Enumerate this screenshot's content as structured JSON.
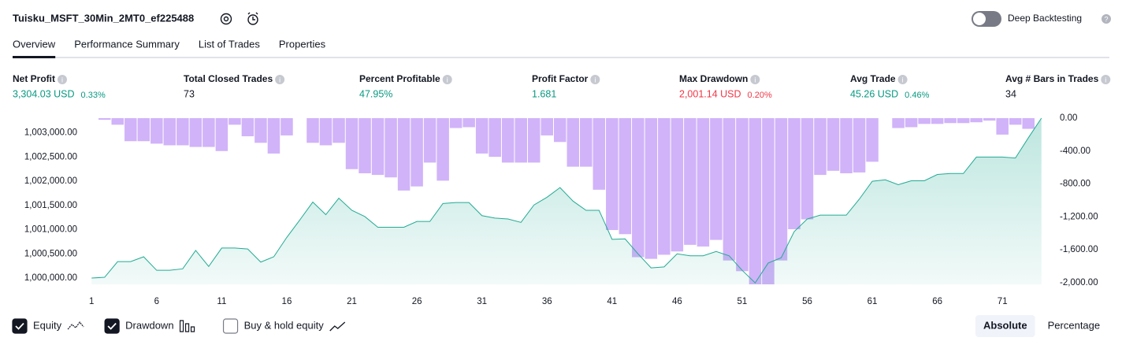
{
  "header": {
    "title": "Tuisku_MSFT_30Min_2MT0_ef225488",
    "deep_backtesting": "Deep Backtesting",
    "deep_backtesting_on": false
  },
  "tabs": [
    "Overview",
    "Performance Summary",
    "List of Trades",
    "Properties"
  ],
  "active_tab": 0,
  "metrics": [
    {
      "label": "Net Profit",
      "value": "3,304.03 USD",
      "percent": "0.33%",
      "color": "#089981"
    },
    {
      "label": "Total Closed Trades",
      "value": "73",
      "color": "#131722"
    },
    {
      "label": "Percent Profitable",
      "value": "47.95%",
      "color": "#089981"
    },
    {
      "label": "Profit Factor",
      "value": "1.681",
      "color": "#089981"
    },
    {
      "label": "Max Drawdown",
      "value": "2,001.14 USD",
      "percent": "0.20%",
      "color": "#f23645"
    },
    {
      "label": "Avg Trade",
      "value": "45.26 USD",
      "percent": "0.46%",
      "color": "#089981"
    },
    {
      "label": "Avg # Bars in Trades",
      "value": "34",
      "color": "#131722"
    }
  ],
  "chart_data": {
    "type": "combo",
    "x": [
      1,
      2,
      3,
      4,
      5,
      6,
      7,
      8,
      9,
      10,
      11,
      12,
      13,
      14,
      15,
      16,
      17,
      18,
      19,
      20,
      21,
      22,
      23,
      24,
      25,
      26,
      27,
      28,
      29,
      30,
      31,
      32,
      33,
      34,
      35,
      36,
      37,
      38,
      39,
      40,
      41,
      42,
      43,
      44,
      45,
      46,
      47,
      48,
      49,
      50,
      51,
      52,
      53,
      54,
      55,
      56,
      57,
      58,
      59,
      60,
      61,
      62,
      63,
      64,
      65,
      66,
      67,
      68,
      69,
      70,
      71,
      72,
      73,
      74
    ],
    "xlim": [
      0.5,
      74.5
    ],
    "xticks": [
      1,
      6,
      11,
      16,
      21,
      26,
      31,
      36,
      41,
      46,
      51,
      56,
      61,
      66,
      71
    ],
    "ylim": [
      999870,
      1003304
    ],
    "yticks": [
      {
        "value": 1000000,
        "label": "1,000,000.00"
      },
      {
        "value": 1000500,
        "label": "1,000,500.00"
      },
      {
        "value": 1001000,
        "label": "1,001,000.00"
      },
      {
        "value": 1001500,
        "label": "1,001,500.00"
      },
      {
        "value": 1002000,
        "label": "1,002,000.00"
      },
      {
        "value": 1002500,
        "label": "1,002,500.00"
      },
      {
        "value": 1003000,
        "label": "1,003,000.00"
      }
    ],
    "y2lim": [
      -2020,
      0
    ],
    "y2ticks": [
      {
        "value": 0,
        "label": "0.00"
      },
      {
        "value": -400,
        "label": "-400.00"
      },
      {
        "value": -800,
        "label": "-800.00"
      },
      {
        "value": -1200,
        "label": "-1,200.00"
      },
      {
        "value": -1600,
        "label": "-1,600.00"
      },
      {
        "value": -2000,
        "label": "-2,000.00"
      }
    ],
    "series": [
      {
        "name": "Equity",
        "kind": "area",
        "checked": true,
        "color": "#22ab94",
        "values": [
          1000000,
          1000016,
          1000340,
          1000340,
          1000440,
          1000160,
          1000160,
          1000190,
          1000570,
          1000240,
          1000620,
          1000620,
          1000600,
          1000330,
          1000440,
          1000840,
          1001200,
          1001570,
          1001310,
          1001650,
          1001400,
          1001270,
          1001050,
          1001050,
          1001050,
          1001170,
          1001170,
          1001540,
          1001560,
          1001560,
          1001290,
          1001240,
          1001220,
          1001150,
          1001510,
          1001670,
          1001870,
          1001590,
          1001400,
          1001400,
          1000800,
          1000810,
          1000500,
          1000210,
          1000230,
          1000500,
          1000460,
          1000460,
          1000550,
          1000460,
          1000160,
          999900,
          1000310,
          1000420,
          1000960,
          1001220,
          1001300,
          1001300,
          1001300,
          1001630,
          1002000,
          1002030,
          1001930,
          1002010,
          1002010,
          1002140,
          1002160,
          1002160,
          1002500,
          1002500,
          1002500,
          1002480,
          1002900,
          1003304
        ]
      },
      {
        "name": "Drawdown",
        "kind": "bar",
        "axis": "y2",
        "checked": true,
        "color": "#d1b3f9",
        "values": [
          0,
          -20,
          -80,
          -280,
          -280,
          -310,
          -330,
          -330,
          -350,
          -350,
          -400,
          -80,
          -220,
          -300,
          -430,
          -210,
          0,
          -300,
          -330,
          -300,
          -620,
          -670,
          -690,
          -720,
          -880,
          -830,
          -540,
          -760,
          -120,
          -110,
          -430,
          -470,
          -540,
          -540,
          -540,
          -210,
          -290,
          -590,
          -590,
          -870,
          -1360,
          -1410,
          -1690,
          -1710,
          -1660,
          -1620,
          -1540,
          -1560,
          -1480,
          -1730,
          -1860,
          -2020,
          -2020,
          -1730,
          -1350,
          -1230,
          -690,
          -640,
          -670,
          -660,
          -530,
          0,
          -120,
          -110,
          -70,
          -70,
          -60,
          -60,
          -50,
          -30,
          -200,
          -80,
          -130,
          0
        ]
      }
    ],
    "buy_hold": {
      "label": "Buy & hold equity",
      "checked": false
    }
  },
  "scale_buttons": [
    "Absolute",
    "Percentage"
  ],
  "active_scale": 0
}
